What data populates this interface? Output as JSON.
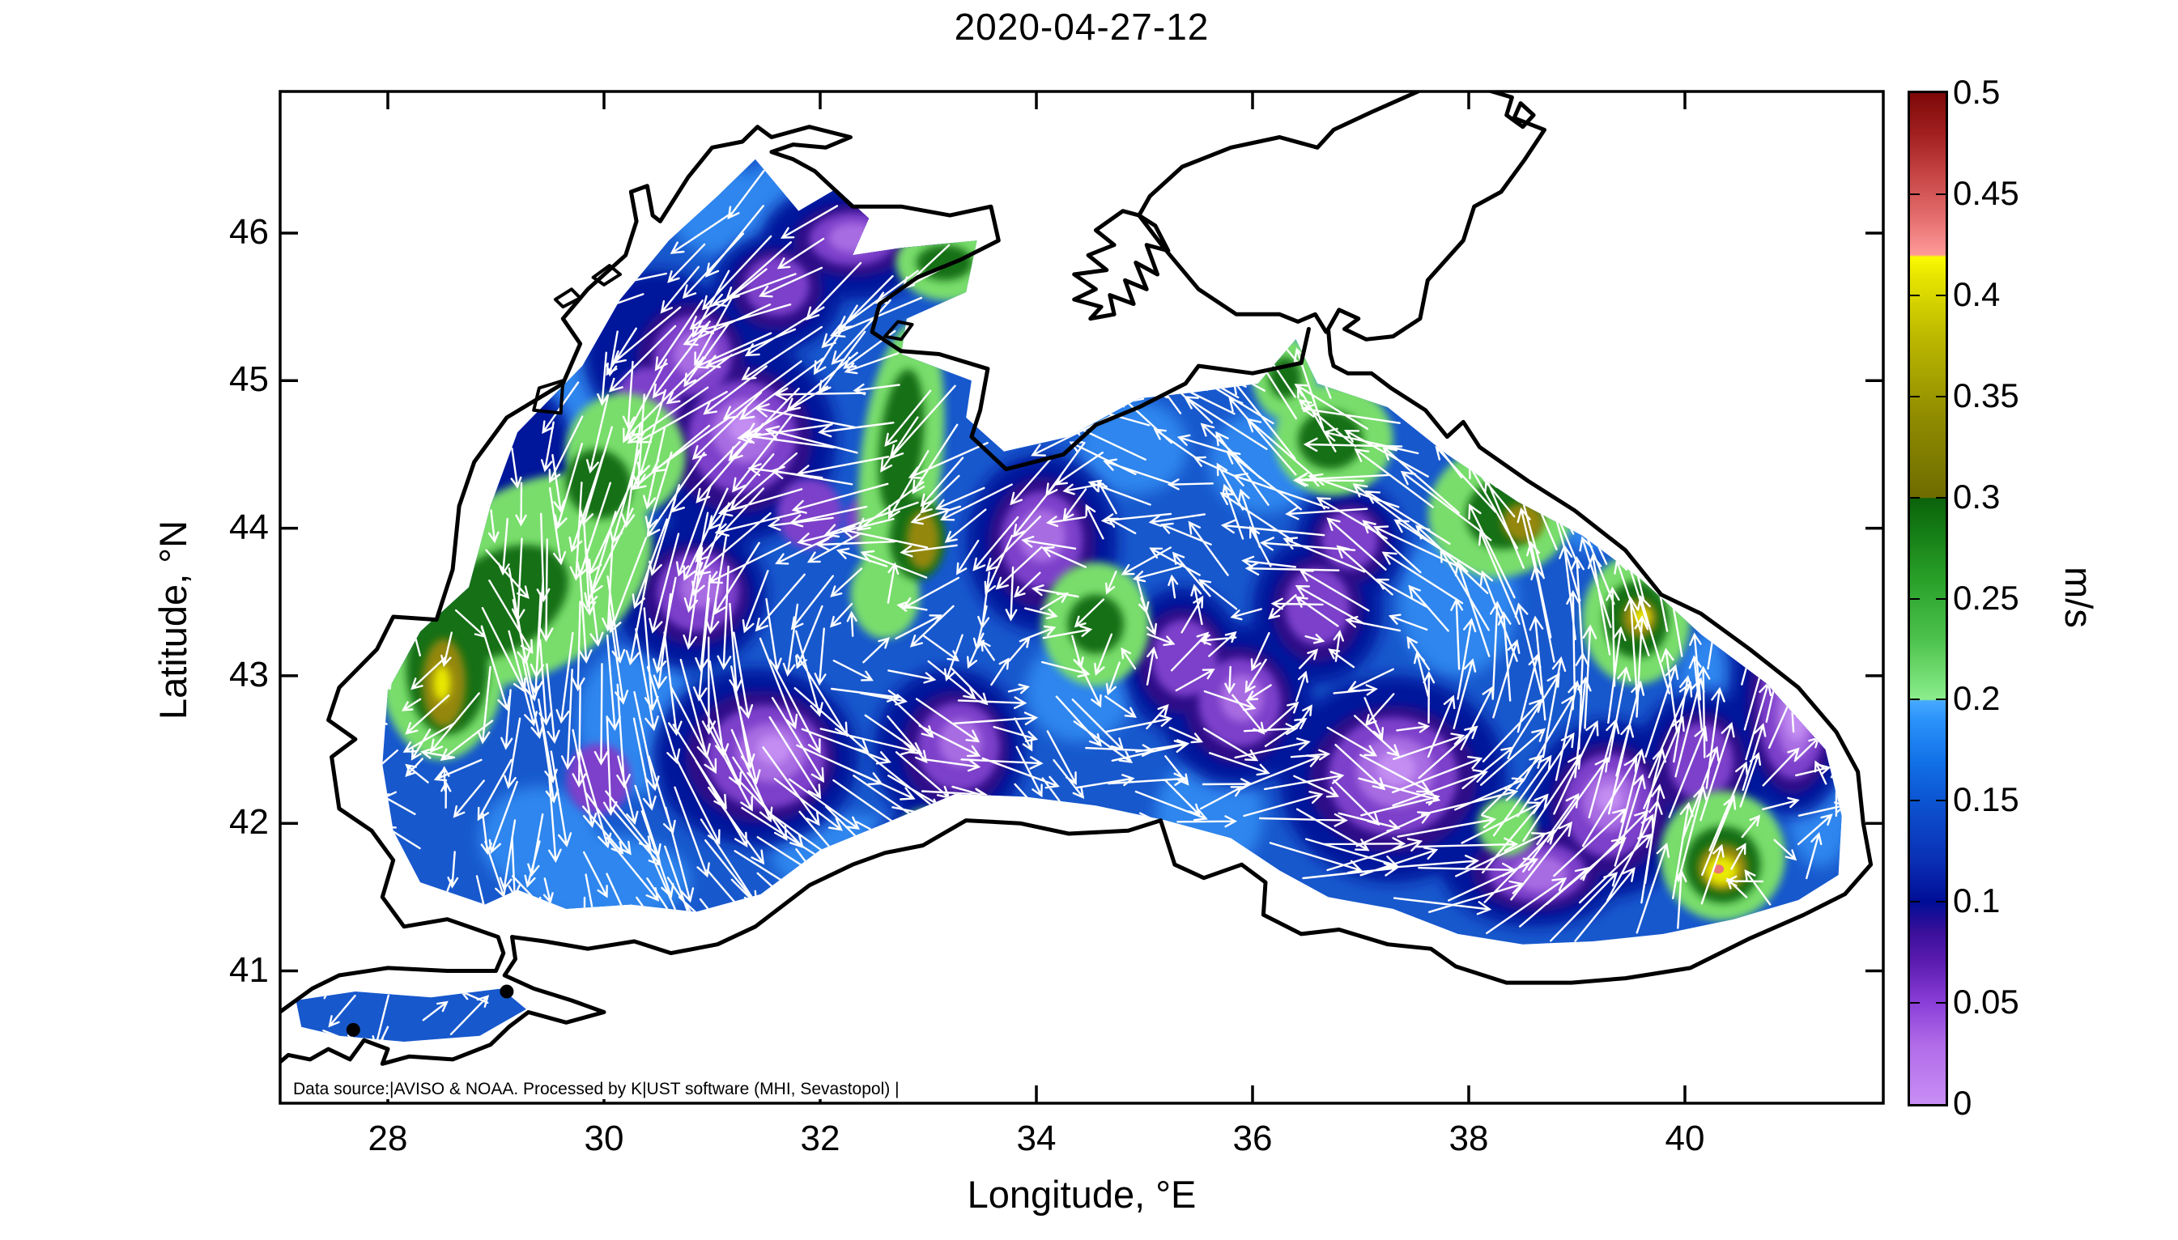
{
  "title": "2020-04-27-12",
  "axes": {
    "x": {
      "label": "Longitude, °E",
      "ticks": [
        "28",
        "30",
        "32",
        "34",
        "36",
        "38",
        "40"
      ],
      "tick_values": [
        28,
        30,
        32,
        34,
        36,
        38,
        40
      ],
      "range": [
        27.0,
        41.87
      ]
    },
    "y": {
      "label": "Latitude, °N",
      "ticks": [
        "46",
        "45",
        "44",
        "43",
        "42",
        "41"
      ],
      "tick_values": [
        46,
        45,
        44,
        43,
        42,
        41
      ],
      "range": [
        40.1,
        46.96
      ]
    }
  },
  "colorbar": {
    "unit": "m/s",
    "min": 0,
    "max": 0.5,
    "tick_step": 0.05,
    "tick_labels": [
      "0",
      "0.05",
      "0.1",
      "0.15",
      "0.2",
      "0.25",
      "0.3",
      "0.35",
      "0.4",
      "0.45",
      "0.5"
    ],
    "stops": [
      [
        0,
        "#c98ef5"
      ],
      [
        6,
        "#b06ae8"
      ],
      [
        10,
        "#8a3fd8"
      ],
      [
        14,
        "#5c1cb0"
      ],
      [
        17,
        "#3a0f9a"
      ],
      [
        20,
        "#000d96"
      ],
      [
        24,
        "#0a2fb4"
      ],
      [
        30,
        "#0c54d2"
      ],
      [
        34,
        "#1272e8"
      ],
      [
        38,
        "#2b92fa"
      ],
      [
        39.9,
        "#47aaff"
      ],
      [
        40,
        "#8cee8c"
      ],
      [
        46,
        "#4cc24c"
      ],
      [
        52,
        "#28a028"
      ],
      [
        58,
        "#107210"
      ],
      [
        59.9,
        "#0b620b"
      ],
      [
        60,
        "#6f6c00"
      ],
      [
        68,
        "#908c00"
      ],
      [
        76,
        "#bdb900"
      ],
      [
        82,
        "#e8e600"
      ],
      [
        83.8,
        "#fbfb00"
      ],
      [
        84,
        "#ff9a9a"
      ],
      [
        88,
        "#e26a6a"
      ],
      [
        92,
        "#c64444"
      ],
      [
        96,
        "#a21f1f"
      ],
      [
        100,
        "#7c0808"
      ]
    ]
  },
  "attribution": "Data source:|AVISO & NOAA. Processed by K|UST software (MHI, Sevastopol)  |",
  "palette": {
    "sea_base": "#1758cd",
    "blue_bright": "#2f86ee",
    "navy": "#00129b",
    "indigo": "#2e0c88",
    "purple": "#7d3fca",
    "violet": "#a86ce2",
    "light_violet": "#c38df2",
    "green_light": "#79dd6c",
    "green_dark": "#157015",
    "olive": "#948708",
    "yellow": "#e9e800",
    "pink": "#ea7878",
    "coastline": "#000000",
    "arrow": "#ffffff",
    "frame": "#000000",
    "background": "#ffffff"
  },
  "chart_data": {
    "type": "heatmap",
    "subtype": "map-contour-vector-field",
    "title": "2020-04-27-12",
    "xlabel": "Longitude, °E",
    "ylabel": "Latitude, °N",
    "xlim": [
      27.0,
      41.87
    ],
    "ylim": [
      40.1,
      46.96
    ],
    "grid": false,
    "colorbar": {
      "label": "m/s",
      "min": 0,
      "max": 0.5,
      "ticks": [
        0,
        0.05,
        0.1,
        0.15,
        0.2,
        0.25,
        0.3,
        0.35,
        0.4,
        0.45,
        0.5
      ],
      "position": "right"
    },
    "description": "Black Sea surface current speed (filled contours, 0-0.5 m/s) with white current-direction vectors for 2020-04-27 12:00. Sea of Azov and Sea of Marmara coastlines drawn; Azov has no data (white). Background sea speeds ~0.1-0.15 m/s (blue), low-speed purple cells ~0.03-0.07 m/s, green jets ~0.2-0.3 m/s, yellow cores ~0.35-0.45 m/s.",
    "features": [
      {
        "name": "western coastal jet with olive cores",
        "lon": 28.6,
        "lat": 43.2,
        "speed_ms": 0.35
      },
      {
        "name": "western gyre diagonal green band",
        "lon": 29.5,
        "lat": 43.8,
        "speed_ms": 0.25
      },
      {
        "name": "meridional green band west of Crimea",
        "lon": 32.8,
        "lat": 44.4,
        "speed_ms": 0.28
      },
      {
        "name": "olive core in west-Crimea band",
        "lon": 32.95,
        "lat": 43.9,
        "speed_ms": 0.33
      },
      {
        "name": "Karkinit Bay green patch",
        "lon": 33.2,
        "lat": 45.8,
        "speed_ms": 0.22
      },
      {
        "name": "central green patch",
        "lon": 34.6,
        "lat": 43.3,
        "speed_ms": 0.24
      },
      {
        "name": "Kerch approach green patch",
        "lon": 36.7,
        "lat": 44.6,
        "speed_ms": 0.27
      },
      {
        "name": "northeastern green patch with olive core",
        "lon": 38.4,
        "lat": 44.1,
        "speed_ms": 0.33
      },
      {
        "name": "Caucasus eddy olive-yellow core",
        "lon": 39.6,
        "lat": 43.4,
        "speed_ms": 0.38
      },
      {
        "name": "Batumi anticyclone yellow core with red speck",
        "lon": 40.3,
        "lat": 41.7,
        "speed_ms": 0.45
      },
      {
        "name": "eastern basin low-speed purple field",
        "lon": 37.3,
        "lat": 42.3,
        "speed_ms": 0.04
      },
      {
        "name": "northwestern shelf purple field",
        "lon": 31.0,
        "lat": 44.6,
        "speed_ms": 0.05
      }
    ]
  }
}
